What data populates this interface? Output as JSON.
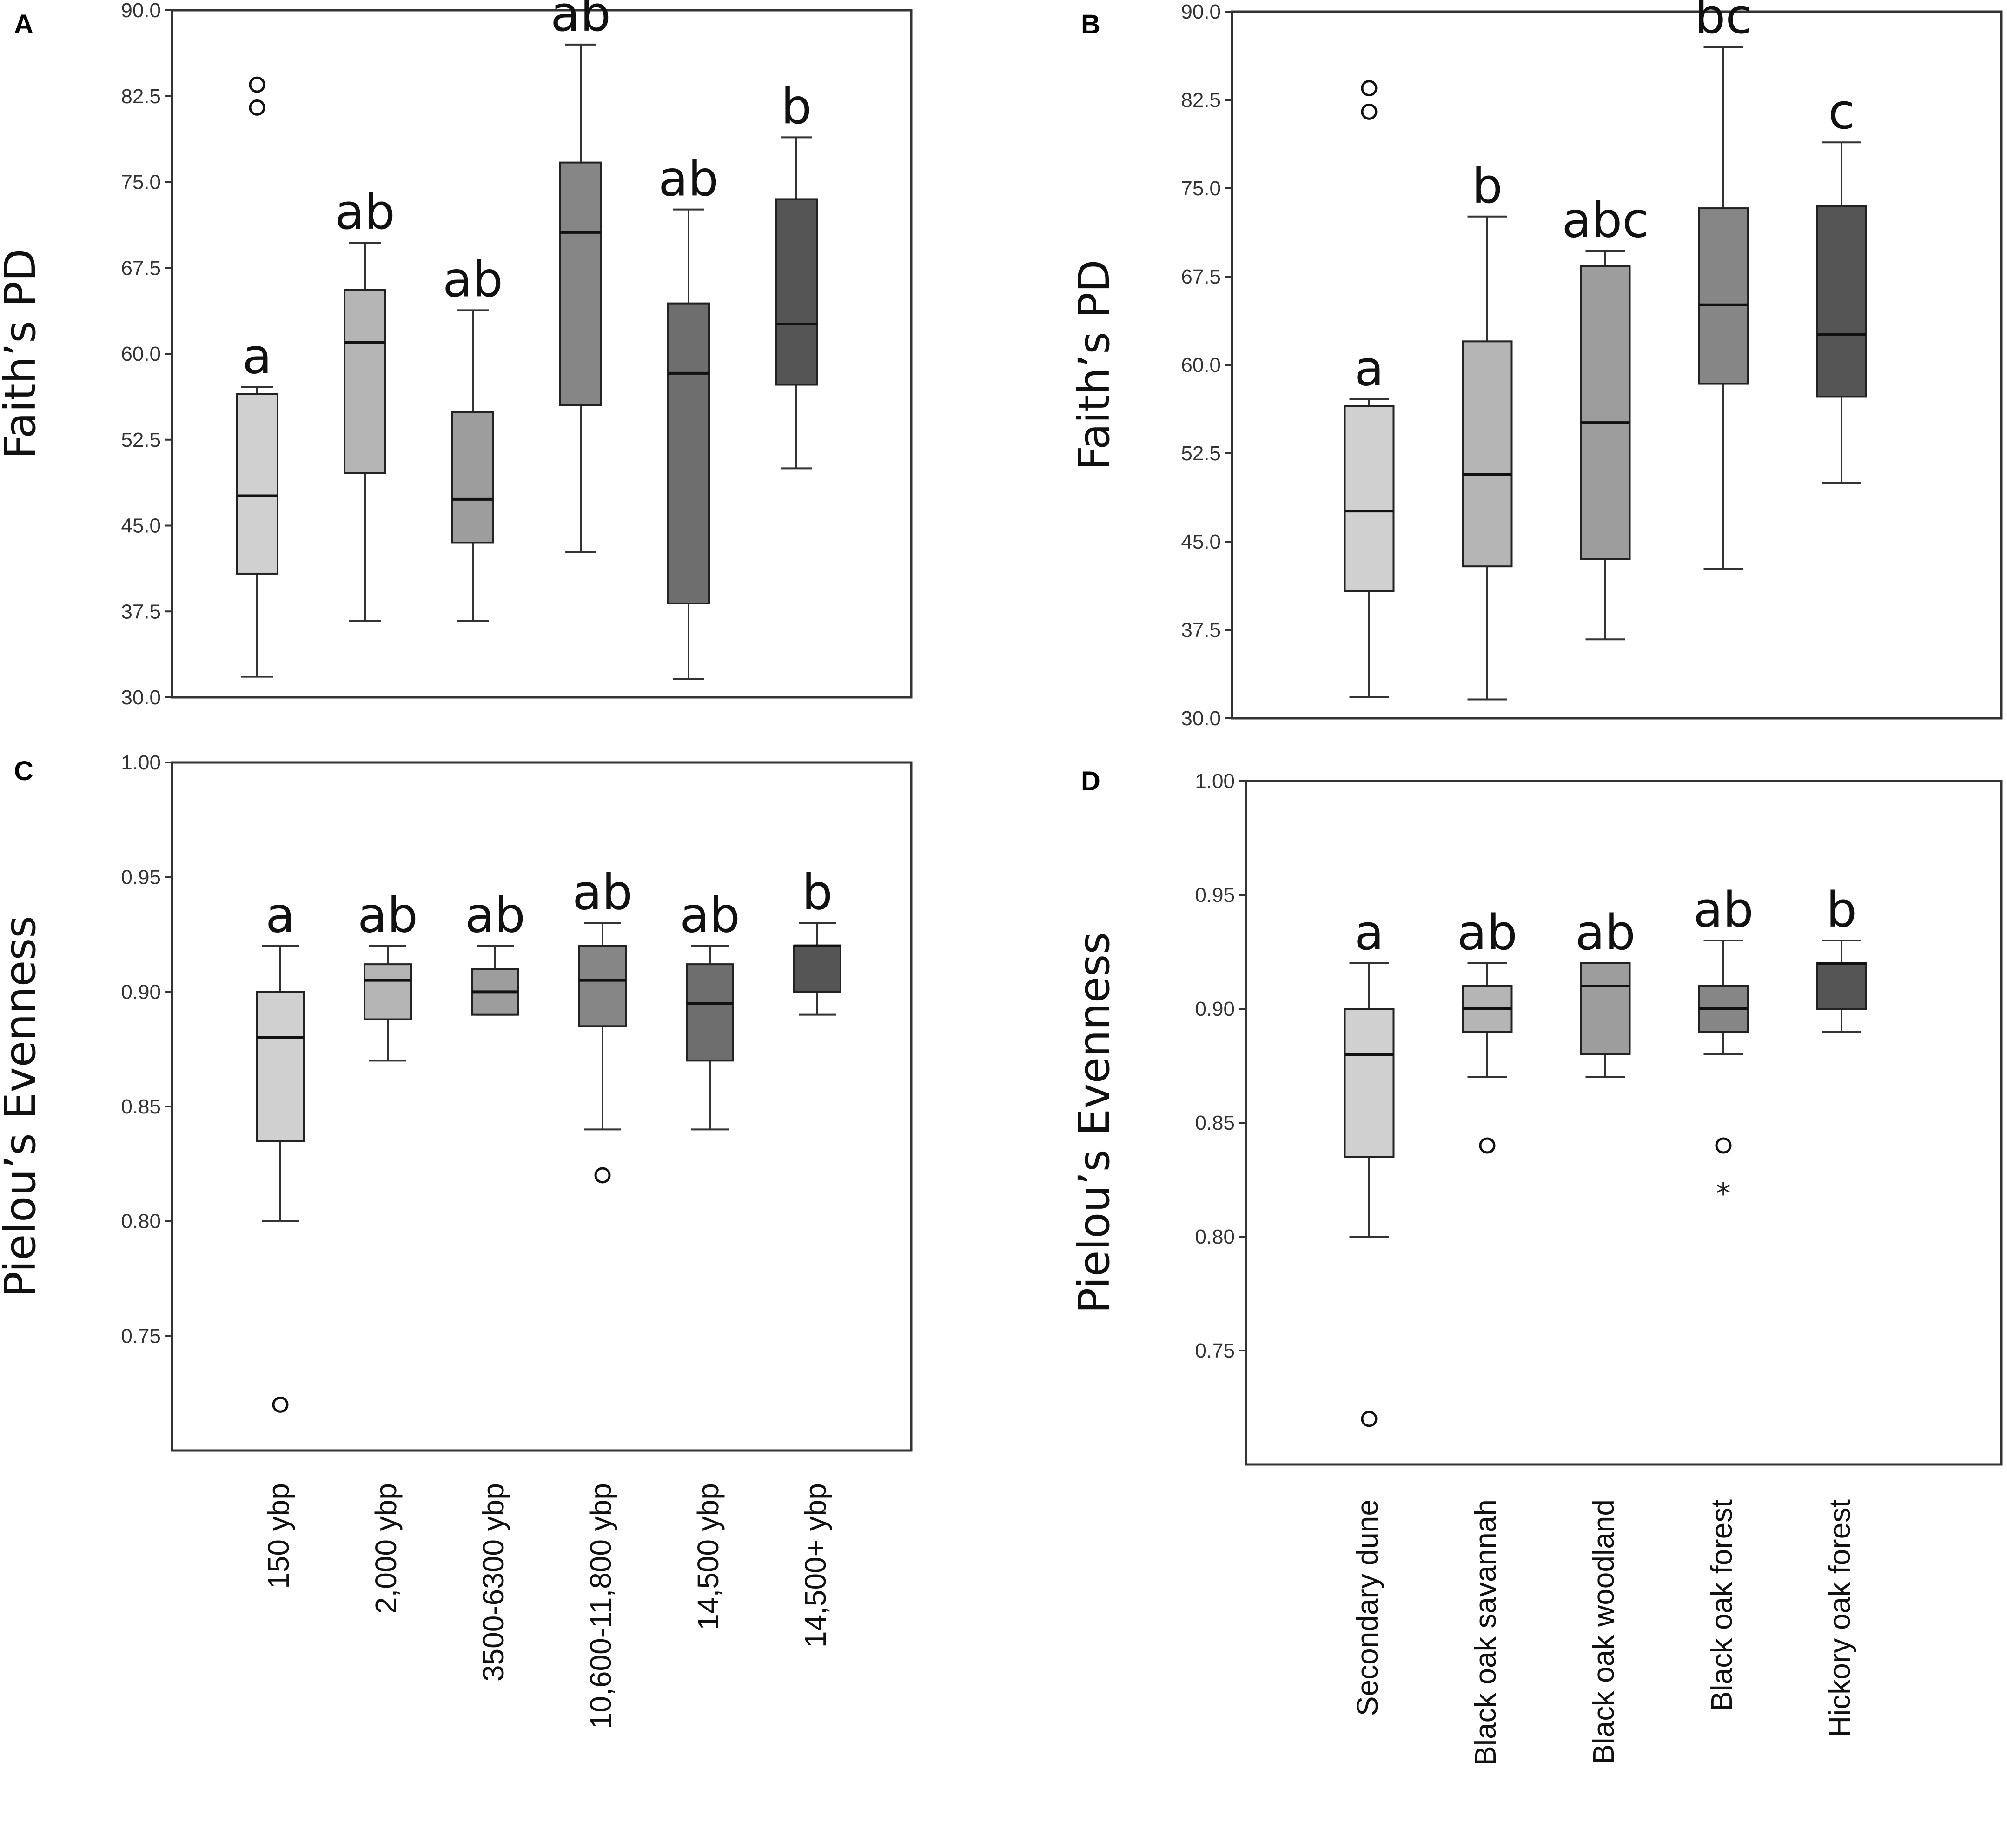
{
  "panel_labels": [
    "A",
    "B",
    "C",
    "D"
  ],
  "colors": {
    "frame": "#333333",
    "box_fills": [
      "#d0d0d0",
      "#b5b5b5",
      "#9d9d9d",
      "#868686",
      "#6e6e6e",
      "#555555"
    ],
    "outlier": "#111111"
  },
  "chart_data": [
    {
      "panel": "A",
      "type": "box",
      "ylabel": "Faith’s PD",
      "ylim": [
        30.0,
        90.0
      ],
      "yticks": [
        "30.0",
        "37.5",
        "45.0",
        "52.5",
        "60.0",
        "67.5",
        "75.0",
        "82.5",
        "90.0"
      ],
      "categories": [
        "150 ybp",
        "2,000 ybp",
        "3500-6300 ybp",
        "10,600-11,800 ybp",
        "14,500 ybp",
        "14,500+ ybp"
      ],
      "boxes": [
        {
          "whisker_low": 31.8,
          "q1": 40.8,
          "median": 47.6,
          "q3": 56.5,
          "whisker_high": 57.1,
          "outliers": [
            81.5,
            83.5
          ],
          "stars": [],
          "letter": "a"
        },
        {
          "whisker_low": 36.7,
          "q1": 49.6,
          "median": 61.0,
          "q3": 65.6,
          "whisker_high": 69.7,
          "outliers": [],
          "stars": [],
          "letter": "ab"
        },
        {
          "whisker_low": 36.7,
          "q1": 43.5,
          "median": 47.3,
          "q3": 54.9,
          "whisker_high": 63.8,
          "outliers": [],
          "stars": [],
          "letter": "ab"
        },
        {
          "whisker_low": 42.7,
          "q1": 55.5,
          "median": 70.6,
          "q3": 76.7,
          "whisker_high": 87.0,
          "outliers": [],
          "stars": [],
          "letter": "ab"
        },
        {
          "whisker_low": 31.6,
          "q1": 38.2,
          "median": 58.3,
          "q3": 64.4,
          "whisker_high": 72.6,
          "outliers": [],
          "stars": [],
          "letter": "ab"
        },
        {
          "whisker_low": 50.0,
          "q1": 57.3,
          "median": 62.6,
          "q3": 73.5,
          "whisker_high": 78.9,
          "outliers": [],
          "stars": [],
          "letter": "b"
        }
      ]
    },
    {
      "panel": "B",
      "type": "box",
      "ylabel": "Faith’s PD",
      "ylim": [
        30.0,
        90.0
      ],
      "yticks": [
        "30.0",
        "37.5",
        "45.0",
        "52.5",
        "60.0",
        "67.5",
        "75.0",
        "82.5",
        "90.0"
      ],
      "categories": [
        "Secondary dune",
        "Black oak savannah",
        "Black oak woodland",
        "Black oak forest",
        "Hickory oak forest"
      ],
      "boxes": [
        {
          "whisker_low": 31.8,
          "q1": 40.8,
          "median": 47.6,
          "q3": 56.5,
          "whisker_high": 57.1,
          "outliers": [
            81.5,
            83.5
          ],
          "stars": [],
          "letter": "a"
        },
        {
          "whisker_low": 31.6,
          "q1": 42.9,
          "median": 50.7,
          "q3": 62.0,
          "whisker_high": 72.6,
          "outliers": [],
          "stars": [],
          "letter": "b"
        },
        {
          "whisker_low": 36.7,
          "q1": 43.5,
          "median": 55.1,
          "q3": 68.4,
          "whisker_high": 69.7,
          "outliers": [],
          "stars": [],
          "letter": "abc"
        },
        {
          "whisker_low": 42.7,
          "q1": 58.4,
          "median": 65.1,
          "q3": 73.3,
          "whisker_high": 87.0,
          "outliers": [],
          "stars": [],
          "letter": "bc"
        },
        {
          "whisker_low": 50.0,
          "q1": 57.3,
          "median": 62.6,
          "q3": 73.5,
          "whisker_high": 78.9,
          "outliers": [],
          "stars": [],
          "letter": "c"
        }
      ]
    },
    {
      "panel": "C",
      "type": "box",
      "ylabel": "Pielou’s Evenness",
      "ylim": [
        0.7,
        1.0
      ],
      "yticks": [
        "0.75",
        "0.80",
        "0.85",
        "0.90",
        "0.95",
        "1.00"
      ],
      "categories": [
        "150 ybp",
        "2,000 ybp",
        "3500-6300 ybp",
        "10,600-11,800 ybp",
        "14,500 ybp",
        "14,500+ ybp"
      ],
      "boxes": [
        {
          "whisker_low": 0.8,
          "q1": 0.835,
          "median": 0.88,
          "q3": 0.9,
          "whisker_high": 0.92,
          "outliers": [
            0.72
          ],
          "stars": [],
          "letter": "a"
        },
        {
          "whisker_low": 0.87,
          "q1": 0.888,
          "median": 0.905,
          "q3": 0.912,
          "whisker_high": 0.92,
          "outliers": [],
          "stars": [],
          "letter": "ab"
        },
        {
          "whisker_low": 0.89,
          "q1": 0.89,
          "median": 0.9,
          "q3": 0.91,
          "whisker_high": 0.92,
          "outliers": [],
          "stars": [],
          "letter": "ab"
        },
        {
          "whisker_low": 0.84,
          "q1": 0.885,
          "median": 0.905,
          "q3": 0.92,
          "whisker_high": 0.93,
          "outliers": [
            0.82
          ],
          "stars": [],
          "letter": "ab"
        },
        {
          "whisker_low": 0.84,
          "q1": 0.87,
          "median": 0.895,
          "q3": 0.912,
          "whisker_high": 0.92,
          "outliers": [],
          "stars": [],
          "letter": "ab"
        },
        {
          "whisker_low": 0.89,
          "q1": 0.9,
          "median": 0.92,
          "q3": 0.92,
          "whisker_high": 0.93,
          "outliers": [],
          "stars": [],
          "letter": "b"
        }
      ]
    },
    {
      "panel": "D",
      "type": "box",
      "ylabel": "Pielou’s Evenness",
      "ylim": [
        0.7,
        1.0
      ],
      "yticks": [
        "0.75",
        "0.80",
        "0.85",
        "0.90",
        "0.95",
        "1.00"
      ],
      "categories": [
        "Secondary dune",
        "Black oak savannah",
        "Black oak woodland",
        "Black oak forest",
        "Hickory oak forest"
      ],
      "boxes": [
        {
          "whisker_low": 0.8,
          "q1": 0.835,
          "median": 0.88,
          "q3": 0.9,
          "whisker_high": 0.92,
          "outliers": [
            0.72
          ],
          "stars": [],
          "letter": "a"
        },
        {
          "whisker_low": 0.87,
          "q1": 0.89,
          "median": 0.9,
          "q3": 0.91,
          "whisker_high": 0.92,
          "outliers": [
            0.84
          ],
          "stars": [],
          "letter": "ab"
        },
        {
          "whisker_low": 0.87,
          "q1": 0.88,
          "median": 0.91,
          "q3": 0.92,
          "whisker_high": 0.92,
          "outliers": [],
          "stars": [],
          "letter": "ab"
        },
        {
          "whisker_low": 0.88,
          "q1": 0.89,
          "median": 0.9,
          "q3": 0.91,
          "whisker_high": 0.93,
          "outliers": [
            0.84
          ],
          "stars": [
            0.82
          ],
          "letter": "ab"
        },
        {
          "whisker_low": 0.89,
          "q1": 0.9,
          "median": 0.92,
          "q3": 0.92,
          "whisker_high": 0.93,
          "outliers": [],
          "stars": [],
          "letter": "b"
        }
      ]
    }
  ]
}
